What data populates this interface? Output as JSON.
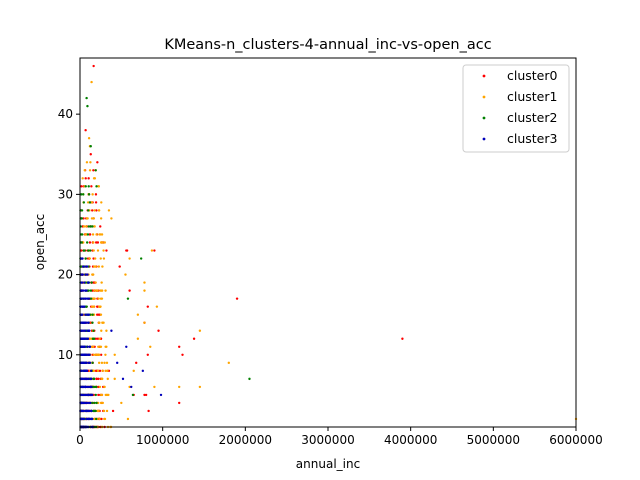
{
  "chart_data": {
    "type": "scatter",
    "title": "KMeans-n_clusters-4-annual_inc-vs-open_acc",
    "xlabel": "annual_inc",
    "ylabel": "open_acc",
    "xlim": [
      0,
      6000000
    ],
    "ylim": [
      1,
      47
    ],
    "xticks": [
      0,
      1000000,
      2000000,
      3000000,
      4000000,
      5000000,
      6000000
    ],
    "xtick_labels": [
      "0",
      "1000000",
      "2000000",
      "3000000",
      "4000000",
      "5000000",
      "6000000"
    ],
    "yticks": [
      10,
      20,
      30,
      40
    ],
    "ytick_labels": [
      "10",
      "20",
      "30",
      "40"
    ],
    "grid": false,
    "legend_position": "top-right",
    "series": [
      {
        "name": "cluster0",
        "color": "#ff0000",
        "marker_size": 1.2,
        "points": [
          [
            165000,
            46
          ],
          [
            68000,
            38
          ],
          [
            130000,
            35
          ],
          [
            210000,
            34
          ],
          [
            245000,
            26
          ],
          [
            260000,
            24
          ],
          [
            280000,
            24
          ],
          [
            320000,
            23
          ],
          [
            560000,
            23
          ],
          [
            570000,
            23
          ],
          [
            900000,
            23
          ],
          [
            480000,
            21
          ],
          [
            600000,
            18
          ],
          [
            820000,
            16
          ],
          [
            1900000,
            17
          ],
          [
            780000,
            14
          ],
          [
            950000,
            13
          ],
          [
            1380000,
            12
          ],
          [
            1200000,
            11
          ],
          [
            1240000,
            10
          ],
          [
            3900000,
            12
          ],
          [
            680000,
            9
          ],
          [
            820000,
            10
          ],
          [
            780000,
            5
          ],
          [
            800000,
            5
          ],
          [
            650000,
            5
          ],
          [
            830000,
            3
          ],
          [
            1200000,
            4
          ],
          [
            400000,
            3
          ],
          [
            350000,
            8
          ]
        ],
        "band": {
          "ymin": 1,
          "ymax": 33,
          "xmin": 10000,
          "xmax": 300000,
          "per_row": 18
        }
      },
      {
        "name": "cluster1",
        "color": "#ffa500",
        "marker_size": 1.2,
        "points": [
          [
            140000,
            44
          ],
          [
            110000,
            37
          ],
          [
            120000,
            36
          ],
          [
            190000,
            33
          ],
          [
            350000,
            28
          ],
          [
            380000,
            27
          ],
          [
            250000,
            25
          ],
          [
            300000,
            24
          ],
          [
            870000,
            23
          ],
          [
            600000,
            22
          ],
          [
            780000,
            19
          ],
          [
            780000,
            18
          ],
          [
            930000,
            16
          ],
          [
            700000,
            15
          ],
          [
            780000,
            14
          ],
          [
            1450000,
            13
          ],
          [
            850000,
            11
          ],
          [
            1800000,
            9
          ],
          [
            1450000,
            6
          ],
          [
            1200000,
            6
          ],
          [
            600000,
            6
          ],
          [
            900000,
            6
          ],
          [
            580000,
            2
          ],
          [
            6000000,
            2
          ],
          [
            500000,
            4
          ],
          [
            420000,
            7
          ],
          [
            650000,
            8
          ],
          [
            700000,
            12
          ],
          [
            550000,
            20
          ],
          [
            420000,
            10
          ]
        ],
        "band": {
          "ymin": 1,
          "ymax": 34,
          "xmin": 30000,
          "xmax": 380000,
          "per_row": 16
        }
      },
      {
        "name": "cluster2",
        "color": "#008000",
        "marker_size": 1.2,
        "points": [
          [
            80000,
            42
          ],
          [
            90000,
            41
          ],
          [
            130000,
            36
          ],
          [
            200000,
            31
          ],
          [
            190000,
            33
          ],
          [
            110000,
            30
          ],
          [
            740000,
            22
          ],
          [
            580000,
            17
          ],
          [
            2050000,
            7
          ],
          [
            640000,
            5
          ],
          [
            100000,
            28
          ],
          [
            150000,
            26
          ]
        ],
        "band": {
          "ymin": 1,
          "ymax": 31,
          "xmin": 5000,
          "xmax": 220000,
          "per_row": 10
        }
      },
      {
        "name": "cluster3",
        "color": "#0000bb",
        "marker_size": 1.2,
        "points": [
          [
            980000,
            5
          ],
          [
            760000,
            8
          ],
          [
            620000,
            6
          ],
          [
            520000,
            7
          ],
          [
            450000,
            9
          ],
          [
            560000,
            11
          ],
          [
            380000,
            13
          ]
        ],
        "band": {
          "ymin": 1,
          "ymax": 22,
          "xmin": 5000,
          "xmax": 160000,
          "per_row": 22
        }
      }
    ]
  }
}
